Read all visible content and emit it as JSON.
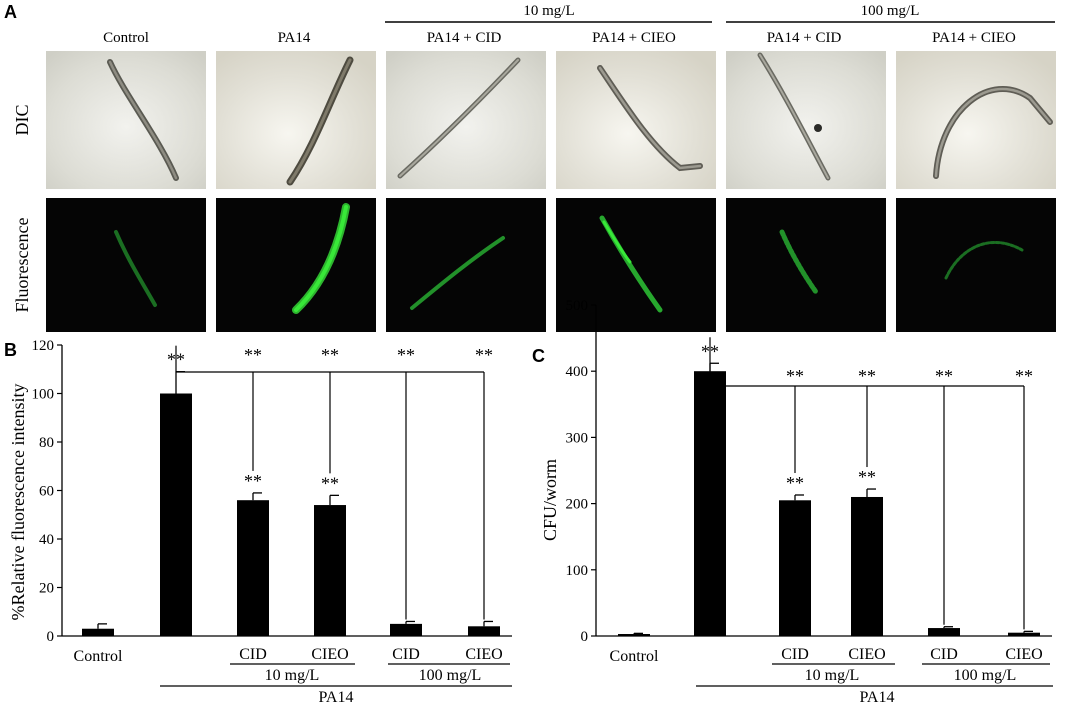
{
  "panel_a": {
    "letter": "A",
    "dose_groups": [
      {
        "label": "10 mg/L"
      },
      {
        "label": "100 mg/L"
      }
    ],
    "columns": [
      "Control",
      "PA14",
      "PA14 + CID",
      "PA14 + CIEO",
      "PA14 + CID",
      "PA14 + CIEO"
    ],
    "row_labels": [
      "DIC",
      "Fluorescence"
    ],
    "fluorescence_colors": {
      "bright": "#38e838",
      "dim": "#1b6e22"
    }
  },
  "chart_data": [
    {
      "type": "bar",
      "panel_letter": "B",
      "ylabel": "%Relative fluorescence intensity",
      "ylim": [
        0,
        120
      ],
      "yticks": [
        0,
        20,
        40,
        60,
        80,
        100,
        120
      ],
      "categories": [
        "Control",
        "",
        "CID",
        "CIEO",
        "CID",
        "CIEO"
      ],
      "values": [
        3,
        100,
        56,
        54,
        5,
        4
      ],
      "errors": [
        2,
        9,
        3,
        4,
        1,
        2
      ],
      "significance": [
        "",
        "**",
        "**",
        "**",
        "",
        ""
      ],
      "bracket_marks": [
        "**",
        "**",
        "**",
        "**"
      ],
      "group_labels": {
        "dose_10": "10 mg/L",
        "dose_100": "100 mg/L",
        "strain": "PA14"
      },
      "bar_color": "#000000"
    },
    {
      "type": "bar",
      "panel_letter": "C",
      "ylabel": "CFU/worm",
      "ylim": [
        0,
        500
      ],
      "yticks": [
        0,
        100,
        200,
        300,
        400,
        500
      ],
      "categories": [
        "Control",
        "",
        "CID",
        "CIEO",
        "CID",
        "CIEO"
      ],
      "values": [
        3,
        400,
        205,
        210,
        12,
        5
      ],
      "errors": [
        1,
        12,
        8,
        12,
        2,
        2
      ],
      "significance": [
        "",
        "**",
        "**",
        "**",
        "",
        ""
      ],
      "bracket_marks": [
        "**",
        "**",
        "**",
        "**"
      ],
      "group_labels": {
        "dose_10": "10 mg/L",
        "dose_100": "100 mg/L",
        "strain": "PA14"
      },
      "bar_color": "#000000"
    }
  ]
}
